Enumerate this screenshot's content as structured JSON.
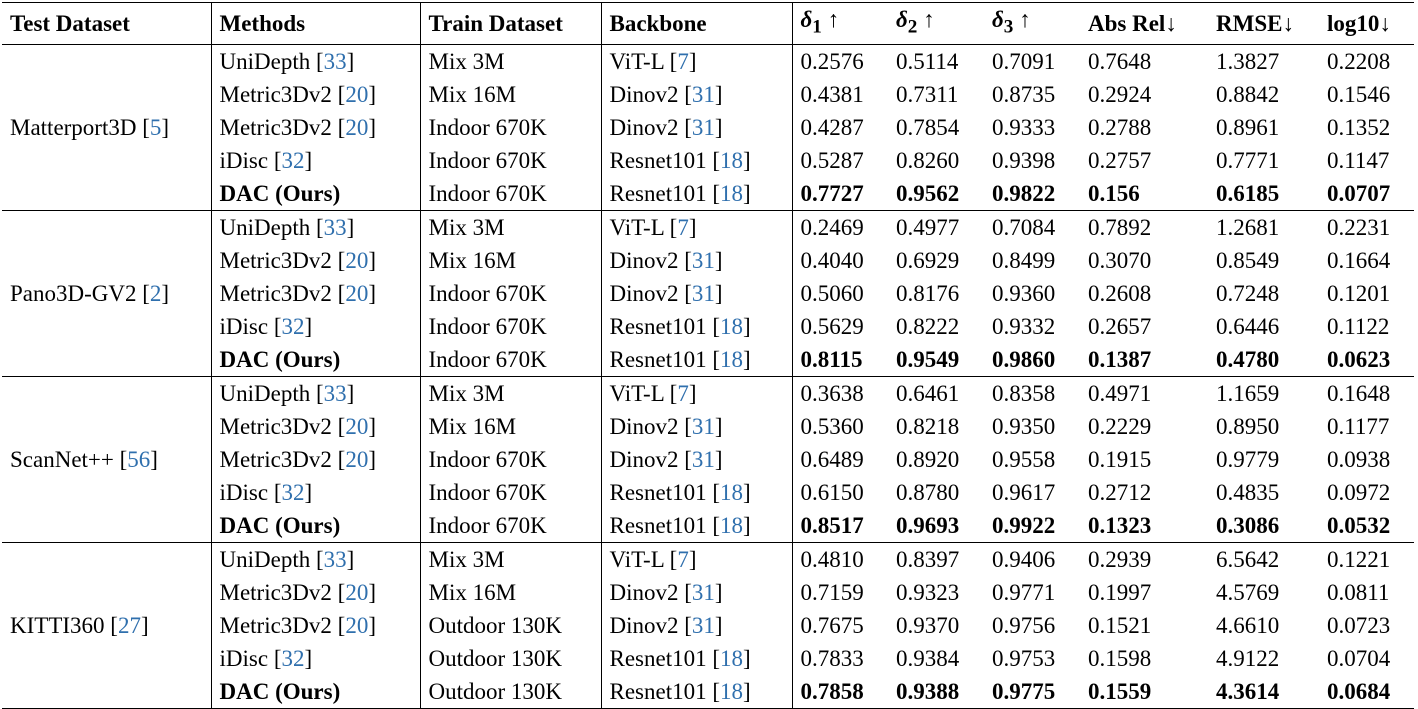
{
  "headers": {
    "test_dataset": "Test Dataset",
    "methods": "Methods",
    "train_dataset": "Train Dataset",
    "backbone": "Backbone",
    "d1_sym": "δ",
    "d1_sub": "1",
    "d1_arrow": " ↑",
    "d2_sym": "δ",
    "d2_sub": "2",
    "d2_arrow": " ↑",
    "d3_sym": "δ",
    "d3_sub": "3",
    "d3_arrow": " ↑",
    "abs_rel": "Abs Rel↓",
    "rmse": "RMSE↓",
    "log10": "log10↓"
  },
  "groups": [
    {
      "dataset": "Matterport3D",
      "dataset_cite": "5",
      "rows": [
        {
          "method": "UniDepth",
          "method_cite": "33",
          "train": "Mix 3M",
          "backbone": "ViT-L",
          "backbone_cite": "7",
          "d1": "0.2576",
          "d2": "0.5114",
          "d3": "0.7091",
          "abs_rel": "0.7648",
          "rmse": "1.3827",
          "log10": "0.2208"
        },
        {
          "method": "Metric3Dv2",
          "method_cite": "20",
          "train": "Mix 16M",
          "backbone": "Dinov2",
          "backbone_cite": "31",
          "d1": "0.4381",
          "d2": "0.7311",
          "d3": "0.8735",
          "abs_rel": "0.2924",
          "rmse": "0.8842",
          "log10": "0.1546"
        },
        {
          "method": "Metric3Dv2",
          "method_cite": "20",
          "train": "Indoor 670K",
          "backbone": "Dinov2",
          "backbone_cite": "31",
          "d1": "0.4287",
          "d2": "0.7854",
          "d3": "0.9333",
          "abs_rel": "0.2788",
          "rmse": "0.8961",
          "log10": "0.1352"
        },
        {
          "method": "iDisc",
          "method_cite": "32",
          "train": "Indoor 670K",
          "backbone": "Resnet101",
          "backbone_cite": "18",
          "d1": "0.5287",
          "d2": "0.8260",
          "d3": "0.9398",
          "abs_rel": "0.2757",
          "rmse": "0.7771",
          "log10": "0.1147"
        },
        {
          "method_bold": "DAC",
          "method_suffix": " (Ours)",
          "train": "Indoor 670K",
          "backbone": "Resnet101",
          "backbone_cite": "18",
          "d1": "0.7727",
          "d2": "0.9562",
          "d3": "0.9822",
          "abs_rel": "0.156",
          "rmse": "0.6185",
          "log10": "0.0707"
        }
      ]
    },
    {
      "dataset": "Pano3D-GV2",
      "dataset_cite": "2",
      "rows": [
        {
          "method": "UniDepth",
          "method_cite": "33",
          "train": "Mix 3M",
          "backbone": "ViT-L",
          "backbone_cite": "7",
          "d1": "0.2469",
          "d2": "0.4977",
          "d3": "0.7084",
          "abs_rel": "0.7892",
          "rmse": "1.2681",
          "log10": "0.2231"
        },
        {
          "method": "Metric3Dv2",
          "method_cite": "20",
          "train": "Mix 16M",
          "backbone": "Dinov2",
          "backbone_cite": "31",
          "d1": "0.4040",
          "d2": "0.6929",
          "d3": "0.8499",
          "abs_rel": "0.3070",
          "rmse": "0.8549",
          "log10": "0.1664"
        },
        {
          "method": "Metric3Dv2",
          "method_cite": "20",
          "train": "Indoor 670K",
          "backbone": "Dinov2",
          "backbone_cite": "31",
          "d1": "0.5060",
          "d2": "0.8176",
          "d3": "0.9360",
          "abs_rel": "0.2608",
          "rmse": "0.7248",
          "log10": "0.1201"
        },
        {
          "method": "iDisc",
          "method_cite": "32",
          "train": "Indoor 670K",
          "backbone": "Resnet101",
          "backbone_cite": "18",
          "d1": "0.5629",
          "d2": "0.8222",
          "d3": "0.9332",
          "abs_rel": "0.2657",
          "rmse": "0.6446",
          "log10": "0.1122"
        },
        {
          "method_bold": "DAC",
          "method_suffix": " (Ours)",
          "train": "Indoor 670K",
          "backbone": "Resnet101",
          "backbone_cite": "18",
          "d1": "0.8115",
          "d2": "0.9549",
          "d3": "0.9860",
          "abs_rel": "0.1387",
          "rmse": "0.4780",
          "log10": "0.0623"
        }
      ]
    },
    {
      "dataset": "ScanNet++",
      "dataset_cite": "56",
      "rows": [
        {
          "method": "UniDepth",
          "method_cite": "33",
          "train": "Mix 3M",
          "backbone": "ViT-L",
          "backbone_cite": "7",
          "d1": "0.3638",
          "d2": "0.6461",
          "d3": "0.8358",
          "abs_rel": "0.4971",
          "rmse": "1.1659",
          "log10": "0.1648"
        },
        {
          "method": "Metric3Dv2",
          "method_cite": "20",
          "train": "Mix 16M",
          "backbone": "Dinov2",
          "backbone_cite": "31",
          "d1": "0.5360",
          "d2": "0.8218",
          "d3": "0.9350",
          "abs_rel": "0.2229",
          "rmse": "0.8950",
          "log10": "0.1177"
        },
        {
          "method": "Metric3Dv2",
          "method_cite": "20",
          "train": "Indoor 670K",
          "backbone": "Dinov2",
          "backbone_cite": "31",
          "d1": "0.6489",
          "d2": "0.8920",
          "d3": "0.9558",
          "abs_rel": "0.1915",
          "rmse": "0.9779",
          "log10": "0.0938"
        },
        {
          "method": "iDisc",
          "method_cite": "32",
          "train": "Indoor 670K",
          "backbone": "Resnet101",
          "backbone_cite": "18",
          "d1": "0.6150",
          "d2": "0.8780",
          "d3": "0.9617",
          "abs_rel": "0.2712",
          "rmse": "0.4835",
          "log10": "0.0972"
        },
        {
          "method_bold": "DAC",
          "method_suffix": " (Ours)",
          "train": "Indoor 670K",
          "backbone": "Resnet101",
          "backbone_cite": "18",
          "d1": "0.8517",
          "d2": "0.9693",
          "d3": "0.9922",
          "abs_rel": "0.1323",
          "rmse": "0.3086",
          "log10": "0.0532"
        }
      ]
    },
    {
      "dataset": "KITTI360",
      "dataset_cite": "27",
      "rows": [
        {
          "method": "UniDepth",
          "method_cite": "33",
          "train": "Mix 3M",
          "backbone": "ViT-L",
          "backbone_cite": "7",
          "d1": "0.4810",
          "d2": "0.8397",
          "d3": "0.9406",
          "abs_rel": "0.2939",
          "rmse": "6.5642",
          "log10": "0.1221"
        },
        {
          "method": "Metric3Dv2",
          "method_cite": "20",
          "train": "Mix 16M",
          "backbone": "Dinov2",
          "backbone_cite": "31",
          "d1": "0.7159",
          "d2": "0.9323",
          "d3": "0.9771",
          "abs_rel": "0.1997",
          "rmse": "4.5769",
          "log10": "0.0811"
        },
        {
          "method": "Metric3Dv2",
          "method_cite": "20",
          "train": "Outdoor 130K",
          "backbone": "Dinov2",
          "backbone_cite": "31",
          "d1": "0.7675",
          "d2": "0.9370",
          "d3": "0.9756",
          "abs_rel": "0.1521",
          "rmse": "4.6610",
          "log10": "0.0723"
        },
        {
          "method": "iDisc",
          "method_cite": "32",
          "train": "Outdoor 130K",
          "backbone": "Resnet101",
          "backbone_cite": "18",
          "d1": "0.7833",
          "d2": "0.9384",
          "d3": "0.9753",
          "abs_rel": "0.1598",
          "rmse": "4.9122",
          "log10": "0.0704"
        },
        {
          "method_bold": "DAC",
          "method_suffix": " (Ours)",
          "train": "Outdoor 130K",
          "backbone": "Resnet101",
          "backbone_cite": "18",
          "d1": "0.7858",
          "d2": "0.9388",
          "d3": "0.9775",
          "abs_rel": "0.1559",
          "rmse": "4.3614",
          "log10": "0.0684"
        }
      ]
    }
  ],
  "style": {
    "citation_color": "#2f6fad",
    "text_color": "#000000",
    "background": "#ffffff"
  }
}
